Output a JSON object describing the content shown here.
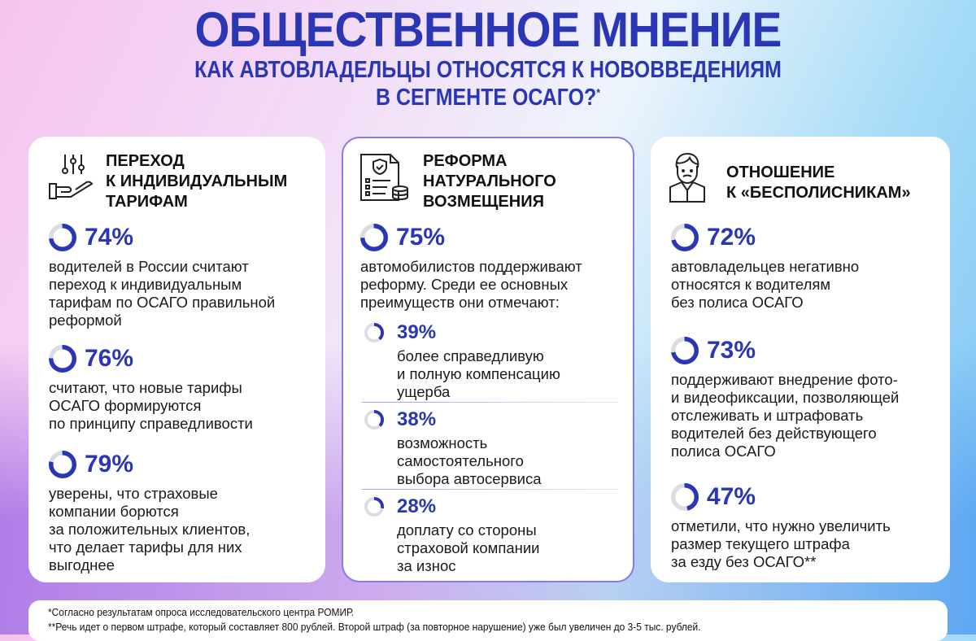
{
  "title": "ОБЩЕСТВЕННОЕ МНЕНИЕ",
  "subtitle": {
    "line1": "КАК АВТОВЛАДЕЛЬЦЫ ОТНОСЯТСЯ К НОВОВВЕДЕНИЯМ",
    "line2": "В СЕГМЕНТЕ ОСАГО?",
    "mark": "*"
  },
  "colors": {
    "accent": "#2a36b4",
    "ring_track": "#dcdde3",
    "card_border": "#8a7ae6"
  },
  "cards": [
    {
      "icon": "hand-sliders-icon",
      "heading": "ПЕРЕХОД\nК ИНДИВИДУАЛЬНЫМ\nТАРИФАМ",
      "stats": [
        {
          "value": 74,
          "label": "74%",
          "text": "водителей в России считают\nпереход к индивидуальным\nтарифам по ОСАГО правильной\nреформой"
        },
        {
          "value": 76,
          "label": "76%",
          "text": "считают, что новые тарифы\nОСАГО формируются\nпо принципу справедливости"
        },
        {
          "value": 79,
          "label": "79%",
          "text": "уверены, что страховые\nкомпании борются\nза положительных клиентов,\nчто делает тарифы для них\nвыгоднее"
        }
      ]
    },
    {
      "icon": "insurance-document-icon",
      "heading": "РЕФОРМА\nНАТУРАЛЬНОГО\nВОЗМЕЩЕНИЯ",
      "stats": [
        {
          "value": 75,
          "label": "75%",
          "text": "автомобилистов поддерживают\nреформу. Среди ее основных\nпреимуществ они отмечают:"
        },
        {
          "value": 39,
          "label": "39%",
          "text": "более справедливую\nи полную компенсацию\nущерба"
        },
        {
          "value": 38,
          "label": "38%",
          "text": "возможность\nсамостоятельного\nвыбора автосервиса"
        },
        {
          "value": 28,
          "label": "28%",
          "text": "доплату со стороны\nстраховой компании\nза износ"
        }
      ]
    },
    {
      "icon": "upset-person-icon",
      "heading": "ОТНОШЕНИЕ\nК «БЕСПОЛИСНИКАМ»",
      "stats": [
        {
          "value": 72,
          "label": "72%",
          "text": "автовладельцев негативно\nотносятся к водителям\nбез полиса ОСАГО"
        },
        {
          "value": 73,
          "label": "73%",
          "text": "поддерживают внедрение фото-\nи видеофиксации, позволяющей\nотслеживать и штрафовать\nводителей без действующего\nполиса ОСАГО"
        },
        {
          "value": 47,
          "label": "47%",
          "text": "отметили, что нужно увеличить\nразмер текущего штрафа\nза езду без ОСАГО**"
        }
      ]
    }
  ],
  "footnotes": [
    "*Согласно результатам опроса исследовательского центра РОМИР.",
    "**Речь идет о первом штрафе, который составляет 800 рублей. Второй штраф (за повторное нарушение) уже был увеличен до 3-5 тыс. рублей."
  ]
}
